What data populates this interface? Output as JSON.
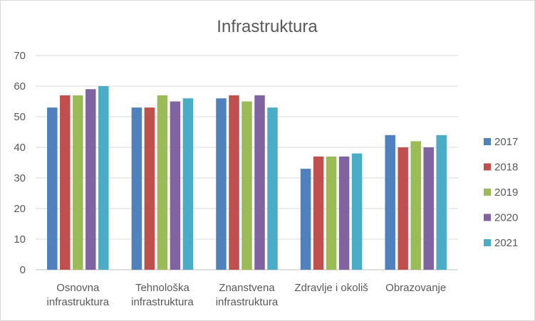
{
  "chart_data": {
    "type": "bar",
    "title": "Infrastruktura",
    "xlabel": "",
    "ylabel": "",
    "ylim": [
      0,
      70
    ],
    "yticks": [
      0,
      10,
      20,
      30,
      40,
      50,
      60,
      70
    ],
    "grid": true,
    "legend_position": "right",
    "categories": [
      [
        "Osnovna",
        "infrastruktura"
      ],
      [
        "Tehnološka",
        "infrastruktura"
      ],
      [
        "Znanstvena",
        "infrastruktura"
      ],
      [
        "Zdravlje i okoliš"
      ],
      [
        "Obrazovanje"
      ]
    ],
    "series": [
      {
        "name": "2017",
        "color": "#4f81bd",
        "values": [
          53,
          53,
          56,
          33,
          44
        ]
      },
      {
        "name": "2018",
        "color": "#c0504d",
        "values": [
          57,
          53,
          57,
          37,
          40
        ]
      },
      {
        "name": "2019",
        "color": "#9bbb59",
        "values": [
          57,
          57,
          55,
          37,
          42
        ]
      },
      {
        "name": "2020",
        "color": "#8064a2",
        "values": [
          59,
          55,
          57,
          37,
          40
        ]
      },
      {
        "name": "2021",
        "color": "#4bacc6",
        "values": [
          60,
          56,
          53,
          38,
          44
        ]
      }
    ]
  }
}
